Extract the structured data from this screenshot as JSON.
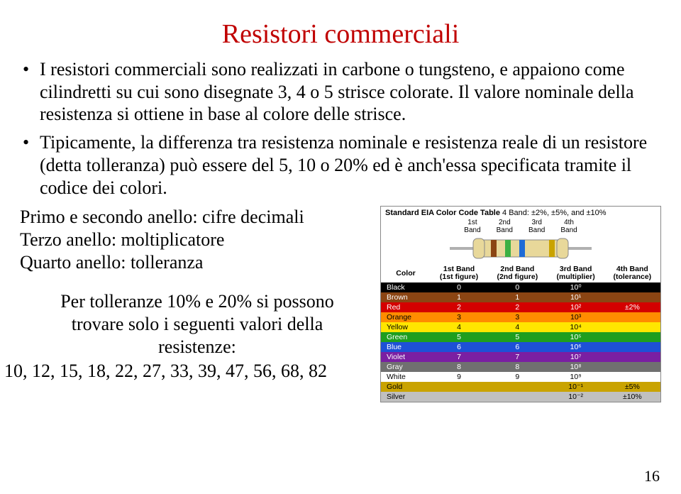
{
  "title": {
    "text": "Resistori commerciali",
    "color": "#c00000"
  },
  "bullets": [
    "I resistori commerciali sono realizzati in carbone o tungsteno, e appaiono come cilindretti su cui sono disegnate 3, 4 o 5 strisce colorate. Il valore nominale della resistenza si ottiene in base al colore delle strisce.",
    "Tipicamente, la differenza tra resistenza nominale e resistenza reale di un resistore (detta tolleranza) può essere del 5, 10 o 20% ed è anch'essa specificata tramite il codice dei colori."
  ],
  "left": {
    "rings1": "Primo e secondo anello: cifre decimali",
    "rings2": "Terzo anello: moltiplicatore",
    "rings3": "Quarto anello: tolleranza",
    "tol1": "Per tolleranze 10% e 20% si possono",
    "tol2": "trovare solo i seguenti valori della",
    "tol3": "resistenze:",
    "series": "10, 12, 15, 18, 22, 27, 33, 39, 47, 56, 68, 82"
  },
  "chart": {
    "title": "Standard EIA Color Code Table",
    "subtitle": "4 Band: ±2%, ±5%, and ±10%",
    "band_labels": [
      "1st\nBand",
      "2nd\nBand",
      "3rd\nBand",
      "4th\nBand"
    ],
    "resistor": {
      "body_color": "#e8d89a",
      "lead_color": "#b0b0b0",
      "bands": [
        "#8b4513",
        "#3cb043",
        "#1e6bd6",
        "#c9a300"
      ]
    },
    "columns": [
      "Color",
      "1st Band\n(1st figure)",
      "2nd Band\n(2nd figure)",
      "3rd Band\n(multiplier)",
      "4th Band\n(tolerance)"
    ],
    "rows": [
      {
        "name": "Black",
        "bg": "#000000",
        "fg": "#ffffff",
        "c1": "0",
        "c2": "0",
        "c3": "10⁰",
        "c4": ""
      },
      {
        "name": "Brown",
        "bg": "#8b4513",
        "fg": "#ffffff",
        "c1": "1",
        "c2": "1",
        "c3": "10¹",
        "c4": ""
      },
      {
        "name": "Red",
        "bg": "#d40000",
        "fg": "#ffffff",
        "c1": "2",
        "c2": "2",
        "c3": "10²",
        "c4": "±2%"
      },
      {
        "name": "Orange",
        "bg": "#ff8c00",
        "fg": "#000000",
        "c1": "3",
        "c2": "3",
        "c3": "10³",
        "c4": ""
      },
      {
        "name": "Yellow",
        "bg": "#ffe600",
        "fg": "#000000",
        "c1": "4",
        "c2": "4",
        "c3": "10⁴",
        "c4": ""
      },
      {
        "name": "Green",
        "bg": "#1f9e1f",
        "fg": "#ffffff",
        "c1": "5",
        "c2": "5",
        "c3": "10⁵",
        "c4": ""
      },
      {
        "name": "Blue",
        "bg": "#1e50d6",
        "fg": "#ffffff",
        "c1": "6",
        "c2": "6",
        "c3": "10⁶",
        "c4": ""
      },
      {
        "name": "Violet",
        "bg": "#7a1fa2",
        "fg": "#ffffff",
        "c1": "7",
        "c2": "7",
        "c3": "10⁷",
        "c4": ""
      },
      {
        "name": "Gray",
        "bg": "#707070",
        "fg": "#ffffff",
        "c1": "8",
        "c2": "8",
        "c3": "10⁸",
        "c4": ""
      },
      {
        "name": "White",
        "bg": "#ffffff",
        "fg": "#000000",
        "c1": "9",
        "c2": "9",
        "c3": "10⁹",
        "c4": ""
      },
      {
        "name": "Gold",
        "bg": "#c9a300",
        "fg": "#000000",
        "c1": "",
        "c2": "",
        "c3": "10⁻¹",
        "c4": "±5%"
      },
      {
        "name": "Silver",
        "bg": "#c0c0c0",
        "fg": "#000000",
        "c1": "",
        "c2": "",
        "c3": "10⁻²",
        "c4": "±10%"
      }
    ]
  },
  "page_number": "16"
}
